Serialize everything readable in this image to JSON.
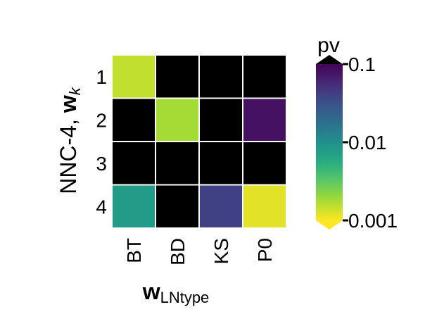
{
  "chart_data": {
    "type": "heatmap",
    "x_categories": [
      "BT",
      "BD",
      "KS",
      "P0"
    ],
    "y_categories": [
      "1",
      "2",
      "3",
      "4"
    ],
    "xlabel": {
      "main": "w",
      "sub": "LNtype"
    },
    "ylabel": {
      "prefix": "NNC-4, ",
      "main": "w",
      "sub": "k"
    },
    "values": [
      [
        0.0015,
        null,
        null,
        null
      ],
      [
        null,
        0.0018,
        null,
        0.08
      ],
      [
        null,
        null,
        null,
        null
      ],
      [
        0.008,
        null,
        0.04,
        0.0012
      ]
    ],
    "missing_color": "#000000",
    "colorbar": {
      "title": "pv",
      "scale": "log",
      "range": [
        0.001,
        0.1
      ],
      "colormap": "viridis_r",
      "extend": "both",
      "ticks": [
        {
          "value": 0.1,
          "label": "0.1"
        },
        {
          "value": 0.01,
          "label": "0.01"
        },
        {
          "value": 0.001,
          "label": "0.001"
        }
      ]
    }
  }
}
